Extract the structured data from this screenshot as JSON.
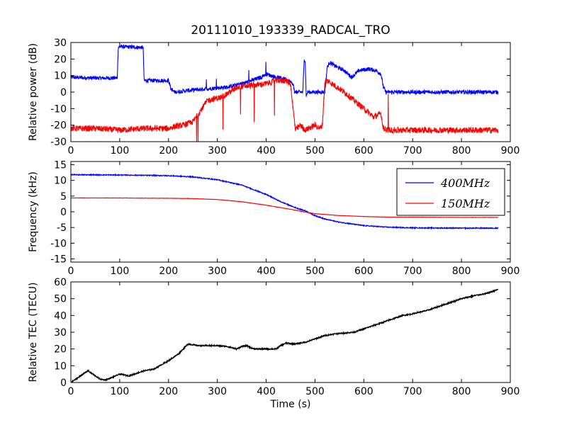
{
  "figure": {
    "title": "20111010_193339_RADCAL_TRO"
  },
  "chart_data": [
    {
      "type": "line",
      "title": "20111010_193339_RADCAL_TRO",
      "xlabel": "",
      "ylabel": "Relative power (dB)",
      "xlim": [
        0,
        900
      ],
      "ylim": [
        -30,
        30
      ],
      "xticks": [
        0,
        100,
        200,
        300,
        400,
        500,
        600,
        700,
        800,
        900
      ],
      "yticks": [
        -30,
        -20,
        -10,
        0,
        10,
        20,
        30
      ],
      "grid": false,
      "series": [
        {
          "color": "#0000ff",
          "x": [
            0,
            40,
            95,
            97,
            100,
            148,
            150,
            200,
            205,
            212,
            240,
            280,
            320,
            360,
            390,
            400,
            420,
            440,
            455,
            458,
            475,
            478,
            480,
            482,
            485,
            490,
            495,
            520,
            525,
            530,
            540,
            560,
            575,
            590,
            610,
            625,
            635,
            640,
            645,
            700,
            750,
            800,
            850,
            875
          ],
          "y": [
            9,
            8.5,
            8.5,
            27,
            27.5,
            27,
            7,
            7,
            2,
            0,
            1,
            2,
            3,
            6,
            9,
            11,
            9,
            8,
            5,
            0,
            0,
            20,
            19,
            -2,
            0,
            0,
            0,
            0,
            15,
            18,
            16,
            13,
            9,
            13,
            14,
            13,
            11,
            3,
            0,
            0,
            0,
            0,
            0,
            0
          ],
          "noise": 1.2
        },
        {
          "color": "#ff0000",
          "x": [
            0,
            50,
            100,
            150,
            200,
            210,
            230,
            250,
            280,
            310,
            340,
            370,
            400,
            420,
            440,
            450,
            455,
            460,
            470,
            480,
            500,
            510,
            515,
            520,
            525,
            530,
            540,
            560,
            580,
            600,
            620,
            635,
            640,
            650,
            700,
            750,
            800,
            850,
            875
          ],
          "y": [
            -22,
            -22,
            -23,
            -22,
            -22,
            -21,
            -20,
            -18,
            -5,
            -3,
            3,
            4,
            5,
            7,
            7,
            5,
            -10,
            -23,
            -20,
            -23,
            -20,
            -22,
            -20,
            5,
            7,
            6,
            4,
            0,
            -5,
            -10,
            -15,
            -13,
            -22,
            -23,
            -23,
            -23,
            -23,
            -23,
            -23
          ],
          "noise": 1.8
        }
      ]
    },
    {
      "type": "line",
      "xlabel": "",
      "ylabel": "Frequency (kHz)",
      "xlim": [
        0,
        900
      ],
      "ylim": [
        -16,
        16
      ],
      "xticks": [
        0,
        100,
        200,
        300,
        400,
        500,
        600,
        700,
        800,
        900
      ],
      "yticks": [
        -15,
        -10,
        -5,
        0,
        5,
        10,
        15
      ],
      "grid": false,
      "legend": {
        "placement": "top-right"
      },
      "series": [
        {
          "name": "400MHz",
          "color": "#0000ff",
          "x": [
            0,
            100,
            200,
            250,
            300,
            350,
            400,
            430,
            460,
            480,
            500,
            520,
            550,
            600,
            650,
            700,
            800,
            875
          ],
          "y": [
            11.8,
            11.7,
            11.5,
            11.1,
            10.2,
            8.5,
            5.5,
            3.2,
            1.3,
            0.3,
            -1.2,
            -2.3,
            -3.3,
            -4.4,
            -4.9,
            -5.1,
            -5.2,
            -5.2
          ],
          "noise": 0.15
        },
        {
          "name": "150MHz",
          "color": "#ff0000",
          "x": [
            0,
            100,
            200,
            250,
            300,
            350,
            400,
            450,
            480,
            500,
            550,
            600,
            650,
            700,
            800,
            875
          ],
          "y": [
            4.4,
            4.4,
            4.3,
            4.2,
            3.9,
            3.2,
            2.1,
            0.8,
            -0.1,
            -0.6,
            -1.2,
            -1.5,
            -1.7,
            -1.7,
            -1.8,
            -1.8
          ],
          "noise": 0.05
        }
      ]
    },
    {
      "type": "line",
      "xlabel": "Time (s)",
      "ylabel": "Relative TEC (TECU)",
      "xlim": [
        0,
        900
      ],
      "ylim": [
        0,
        60
      ],
      "xticks": [
        0,
        100,
        200,
        300,
        400,
        500,
        600,
        700,
        800,
        900
      ],
      "yticks": [
        0,
        10,
        20,
        30,
        40,
        50,
        60
      ],
      "grid": false,
      "series": [
        {
          "color": "#000000",
          "x": [
            0,
            10,
            20,
            35,
            50,
            60,
            70,
            80,
            100,
            120,
            150,
            170,
            200,
            220,
            240,
            260,
            280,
            300,
            320,
            340,
            350,
            360,
            370,
            380,
            400,
            420,
            430,
            440,
            460,
            480,
            500,
            520,
            540,
            560,
            580,
            600,
            620,
            650,
            680,
            700,
            730,
            760,
            780,
            800,
            830,
            850,
            870,
            875
          ],
          "y": [
            0,
            2,
            4,
            7,
            4,
            2,
            1.5,
            2.5,
            5,
            4,
            7,
            8,
            13,
            17,
            23,
            22,
            22,
            22,
            21.5,
            20,
            21.5,
            22,
            20.5,
            20,
            20,
            20,
            22,
            23.5,
            23,
            24,
            26,
            28,
            29,
            29.5,
            30,
            32,
            34,
            37,
            40,
            41,
            43,
            46,
            48,
            50,
            52,
            53,
            55,
            55.5
          ],
          "noise": 0.35
        }
      ]
    }
  ]
}
